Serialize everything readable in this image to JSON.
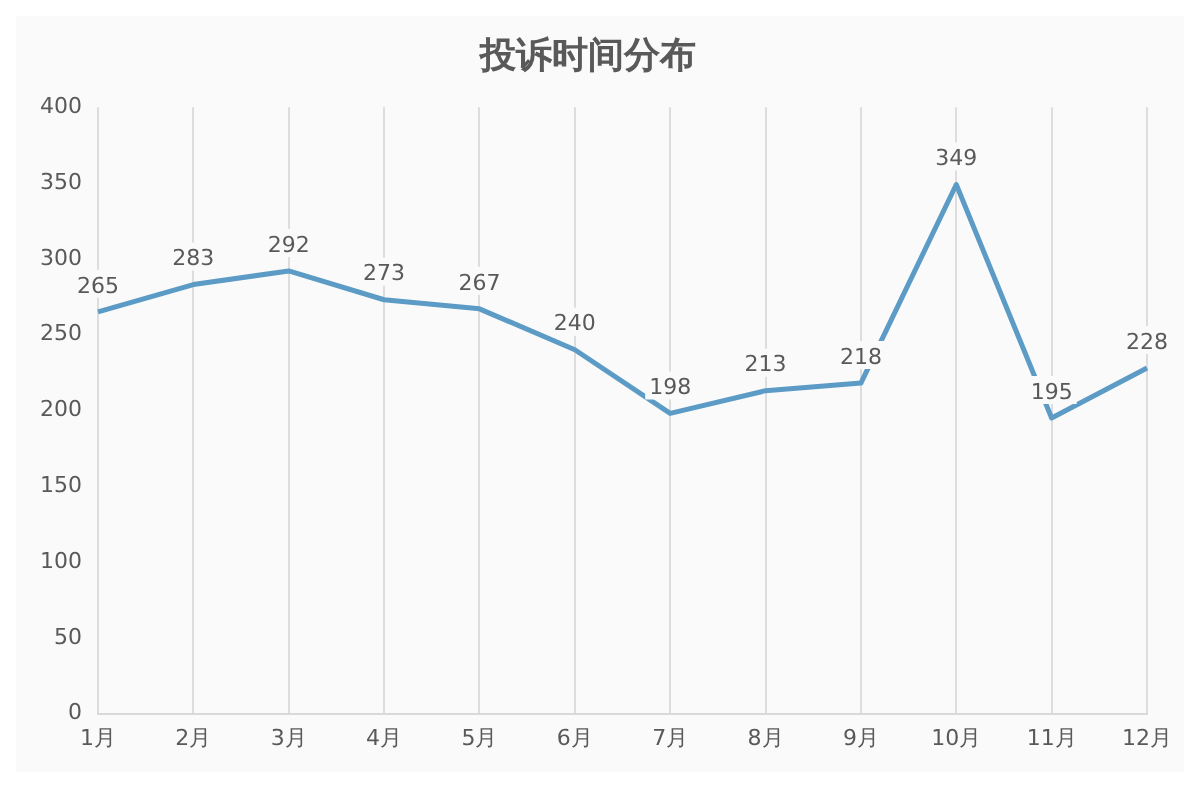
{
  "chart_data": {
    "type": "line",
    "title": "投诉时间分布",
    "categories": [
      "1月",
      "2月",
      "3月",
      "4月",
      "5月",
      "6月",
      "7月",
      "8月",
      "9月",
      "10月",
      "11月",
      "12月"
    ],
    "series": [
      {
        "color": "#5b9bc5",
        "values": [
          265,
          283,
          292,
          273,
          267,
          240,
          198,
          213,
          218,
          349,
          195,
          228
        ]
      }
    ],
    "ylim": [
      0,
      400
    ],
    "yticks": [
      0,
      50,
      100,
      150,
      200,
      250,
      300,
      350,
      400
    ],
    "grid": "x",
    "legend": false,
    "marker": "none",
    "line_style": "solid",
    "data_labels": true
  }
}
